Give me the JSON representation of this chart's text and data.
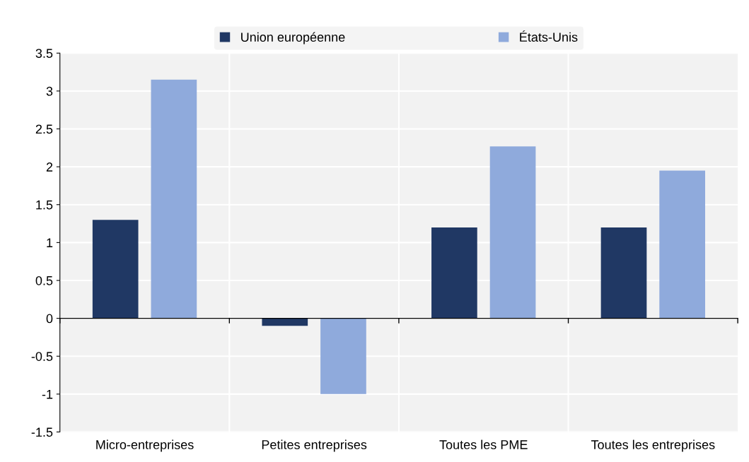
{
  "chart_data": {
    "type": "bar",
    "categories": [
      "Micro-entreprises",
      "Petites entreprises",
      "Toutes les PME",
      "Toutes les entreprises"
    ],
    "series": [
      {
        "name": "Union européenne",
        "color": "#203864",
        "values": [
          1.3,
          -0.1,
          1.2,
          1.2
        ]
      },
      {
        "name": "États-Unis",
        "color": "#8faadc",
        "values": [
          3.15,
          -1.0,
          2.27,
          1.95
        ]
      }
    ],
    "ylim": [
      -1.5,
      3.5
    ],
    "yticks": [
      -1.5,
      -1,
      -0.5,
      0,
      0.5,
      1,
      1.5,
      2,
      2.5,
      3,
      3.5
    ],
    "grid": true,
    "legend": "top"
  }
}
